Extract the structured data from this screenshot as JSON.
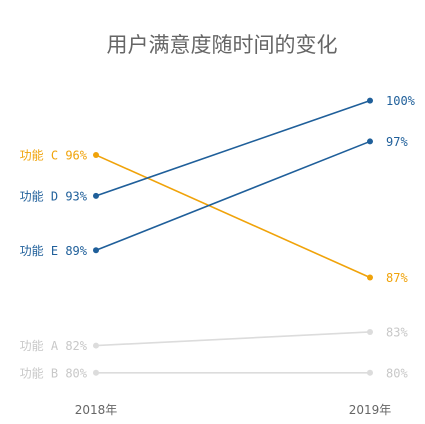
{
  "chart_data": {
    "type": "line",
    "title": "用户满意度随时间的变化",
    "x": [
      "2018年",
      "2019年"
    ],
    "ylim": [
      78,
      101
    ],
    "series": [
      {
        "name": "功能 A",
        "values": [
          82,
          83
        ],
        "color": "#dcdcdc",
        "left_label": "功能 A 82%",
        "right_label": "83%"
      },
      {
        "name": "功能 B",
        "values": [
          80,
          80
        ],
        "color": "#dcdcdc",
        "left_label": "功能 B 80%",
        "right_label": "80%"
      },
      {
        "name": "功能 C",
        "values": [
          96,
          87
        ],
        "color": "#f0a30a",
        "left_label": "功能 C 96%",
        "right_label": "87%"
      },
      {
        "name": "功能 D",
        "values": [
          93,
          100
        ],
        "color": "#1f5f9a",
        "left_label": "功能 D 93%",
        "right_label": "100%"
      },
      {
        "name": "功能 E",
        "values": [
          89,
          97
        ],
        "color": "#1f5f9a",
        "left_label": "功能 E 89%",
        "right_label": "97%"
      }
    ],
    "grid": false,
    "legend": "none"
  }
}
